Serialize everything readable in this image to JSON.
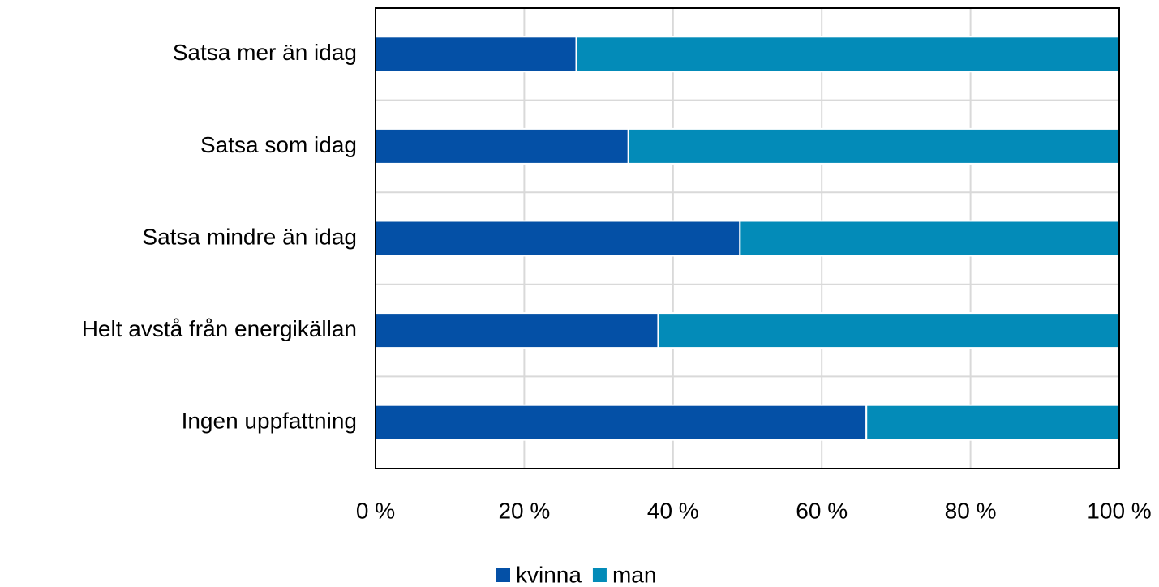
{
  "chart_data": {
    "type": "stacked_barh",
    "categories": [
      "Satsa mer än idag",
      "Satsa som idag",
      "Satsa mindre än idag",
      "Helt avstå från energikällan",
      "Ingen uppfattning"
    ],
    "series": [
      {
        "name": "kvinna",
        "color": "#0450a6",
        "values": [
          27,
          34,
          49,
          38,
          66
        ]
      },
      {
        "name": "man",
        "color": "#038bb8",
        "values": [
          73,
          66,
          51,
          62,
          34
        ]
      }
    ],
    "xlim": [
      0,
      100
    ],
    "xticks": [
      {
        "value": 0,
        "label": "0 %"
      },
      {
        "value": 20,
        "label": "20 %"
      },
      {
        "value": 40,
        "label": "40 %"
      },
      {
        "value": 60,
        "label": "60 %"
      },
      {
        "value": 80,
        "label": "80 %"
      },
      {
        "value": 100,
        "label": "100 %"
      }
    ],
    "grid": true,
    "legend": "bottom"
  }
}
